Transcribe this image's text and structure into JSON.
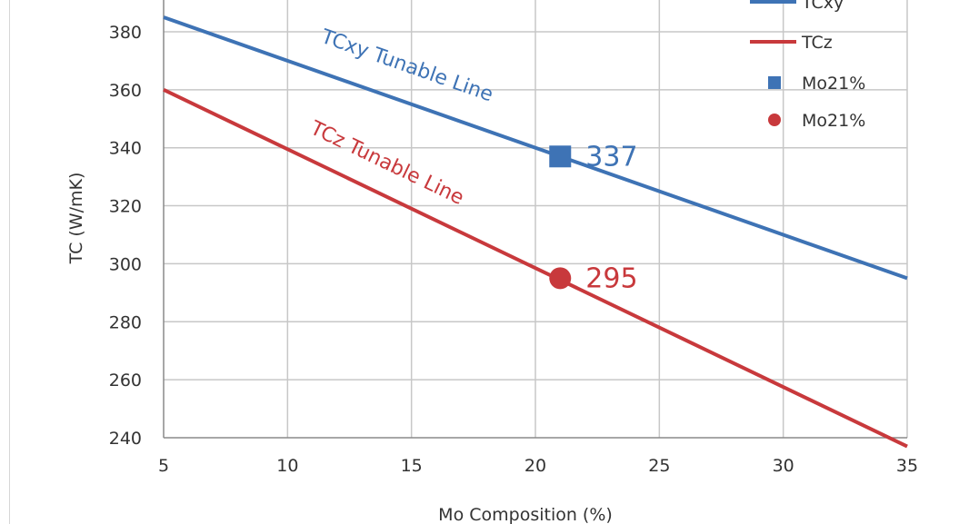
{
  "chart_data": {
    "type": "line",
    "xlabel": "Mo Composition (%)",
    "ylabel": "TC  (W/mK)",
    "xlim": [
      5,
      35
    ],
    "ylim": [
      240,
      390
    ],
    "x_ticks": [
      5,
      10,
      15,
      20,
      25,
      30,
      35
    ],
    "y_ticks": [
      240,
      260,
      280,
      300,
      320,
      340,
      360,
      380
    ],
    "grid": true,
    "legend_position": "top-right",
    "series": [
      {
        "name": "TCxy",
        "kind": "line",
        "color": "#3e73b5",
        "x": [
          5,
          35
        ],
        "y": [
          385,
          295
        ],
        "label": "TCxy Tunable Line"
      },
      {
        "name": "TCz",
        "kind": "line",
        "color": "#c8393c",
        "x": [
          5,
          35
        ],
        "y": [
          360,
          237
        ],
        "label": "TCz Tunable Line"
      },
      {
        "name": "Mo21%",
        "kind": "marker",
        "marker": "square",
        "color": "#3e73b5",
        "x": [
          21
        ],
        "y": [
          337
        ],
        "value_label": "337"
      },
      {
        "name": "Mo21%",
        "kind": "marker",
        "marker": "circle",
        "color": "#c8393c",
        "x": [
          21
        ],
        "y": [
          295
        ],
        "value_label": "295"
      }
    ]
  }
}
